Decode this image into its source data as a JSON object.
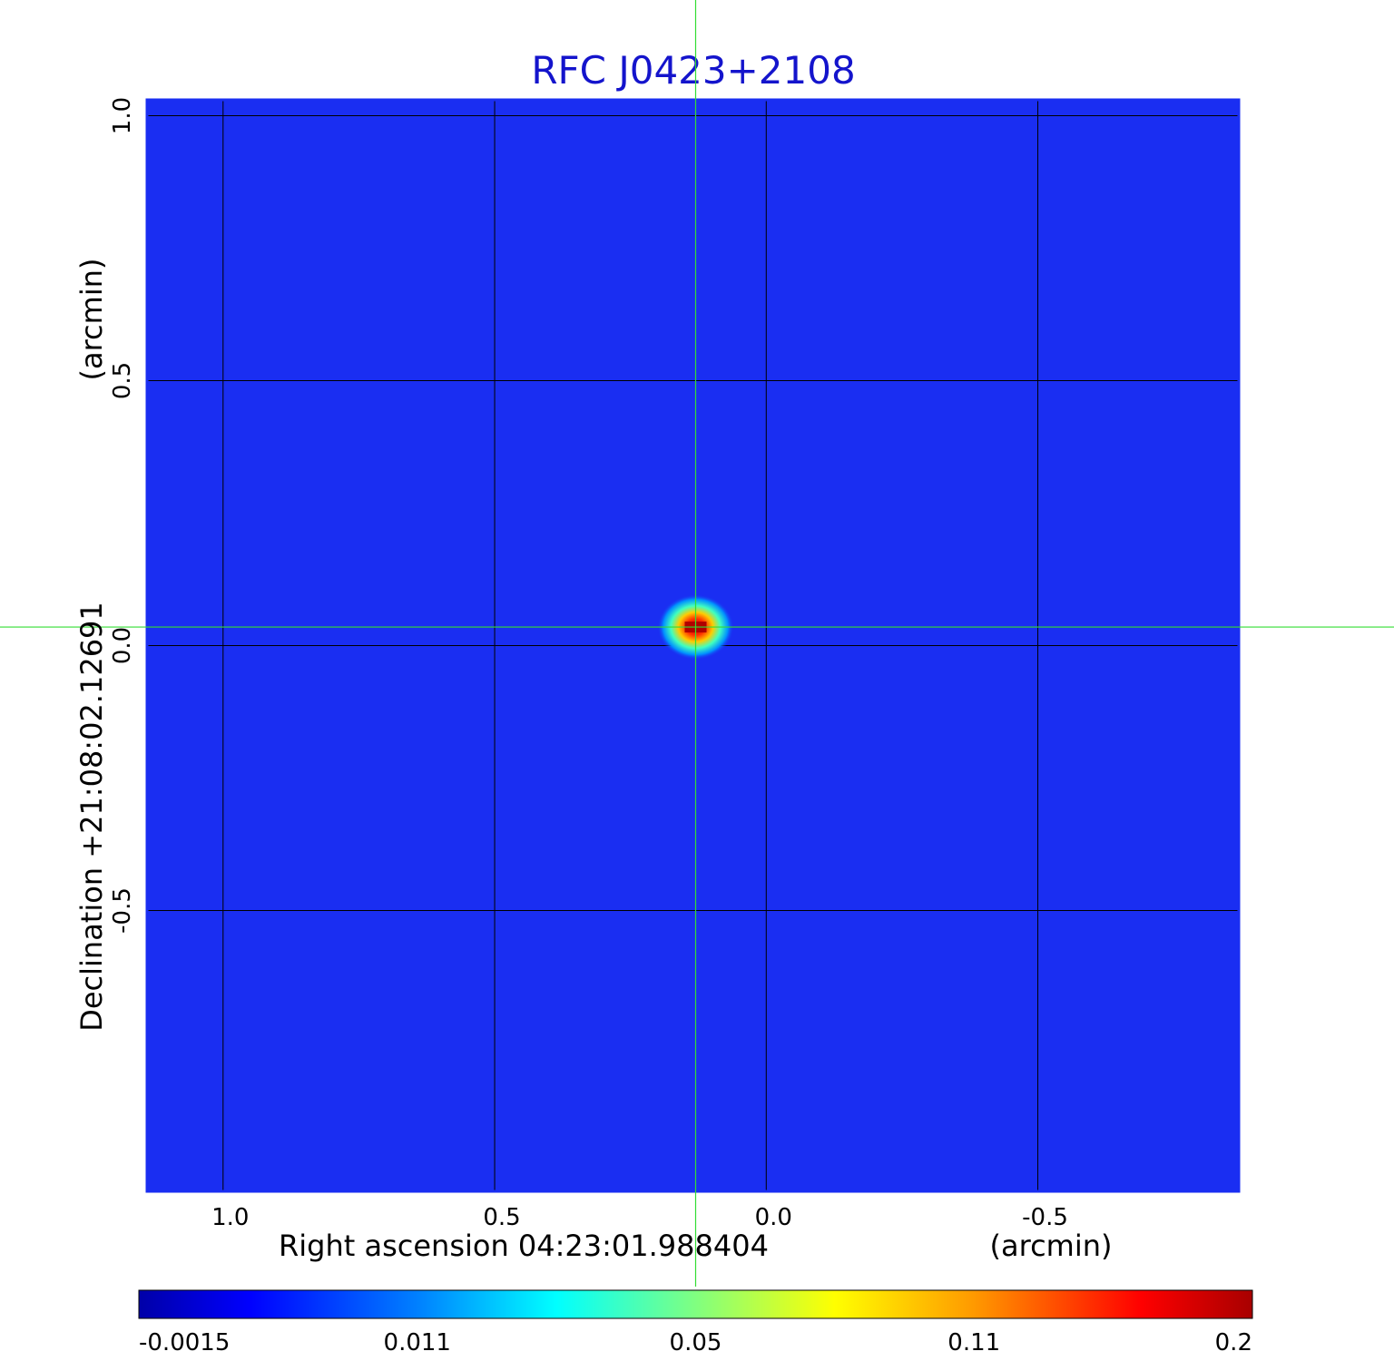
{
  "chart_data": {
    "type": "heatmap",
    "title": "RFC J0423+2108",
    "xlabel": "Right ascension  04:23:01.988404",
    "xunit": "(arcmin)",
    "ylabel": "Declination  +21:08:02.12691",
    "yunit": "(arcmin)",
    "x_ticks": [
      "1.0",
      "0.5",
      "0.0",
      "-0.5"
    ],
    "y_ticks": [
      "1.0",
      "0.5",
      "0.0",
      "-0.5"
    ],
    "xlim": [
      1.14,
      -0.87
    ],
    "ylim": [
      -1.03,
      1.03
    ],
    "grid": true,
    "crosshair": [
      0.13,
      0.035
    ],
    "source": {
      "x": 0.13,
      "y": 0.035,
      "peak": 0.2
    },
    "colorbar": {
      "ticks": [
        "-0.0015",
        "0.011",
        "0.05",
        "0.11",
        "0.2"
      ],
      "colormap": "jet"
    },
    "colors": {
      "background": "#1a2ef2",
      "grid": "#000000",
      "crosshair": "#33dd33",
      "title": "#1414cc"
    }
  }
}
